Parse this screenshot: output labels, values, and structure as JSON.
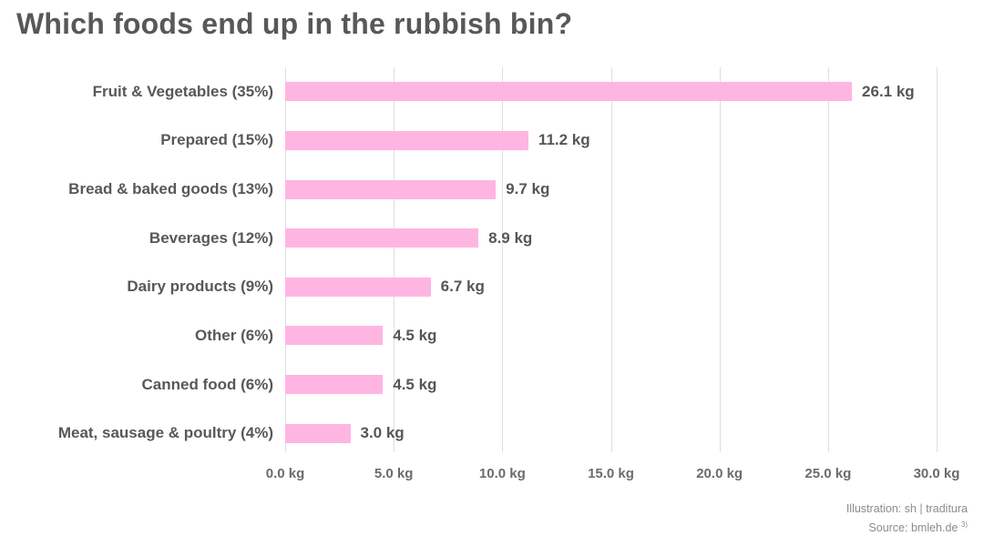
{
  "title": "Which foods end up in the rubbish bin?",
  "chart_data": {
    "type": "bar",
    "orientation": "horizontal",
    "title": "Which foods end up in the rubbish bin?",
    "categories": [
      "Fruit & Vegetables (35%)",
      "Prepared (15%)",
      "Bread & baked goods (13%)",
      "Beverages (12%)",
      "Dairy products (9%)",
      "Other (6%)",
      "Canned food (6%)",
      "Meat, sausage & poultry (4%)"
    ],
    "values": [
      26.1,
      11.2,
      9.7,
      8.9,
      6.7,
      4.5,
      4.5,
      3.0
    ],
    "value_labels": [
      "26.1 kg",
      "11.2 kg",
      "9.7 kg",
      "8.9 kg",
      "6.7 kg",
      "4.5 kg",
      "4.5 kg",
      "3.0 kg"
    ],
    "unit": "kg",
    "xlabel": "",
    "ylabel": "",
    "xlim": [
      0,
      30
    ],
    "x_tick_step": 5,
    "x_ticks": [
      "0.0 kg",
      "5.0 kg",
      "10.0 kg",
      "15.0 kg",
      "20.0 kg",
      "25.0 kg",
      "30.0 kg"
    ],
    "grid": "vertical-only",
    "legend": "none",
    "bar_color": "#ffb5e2"
  },
  "colors": {
    "title_text": "#58585a",
    "category_text": "#58585a",
    "value_text": "#565658",
    "tick_text": "#6b6b6b",
    "grid_line": "#dedede",
    "bar": "#ffb5e2",
    "footer_text": "#8c8c8c",
    "background": "#ffffff"
  },
  "footer": {
    "illustration": "Illustration: sh | traditura",
    "source": "Source: bmleh.de",
    "source_note": "3)"
  }
}
